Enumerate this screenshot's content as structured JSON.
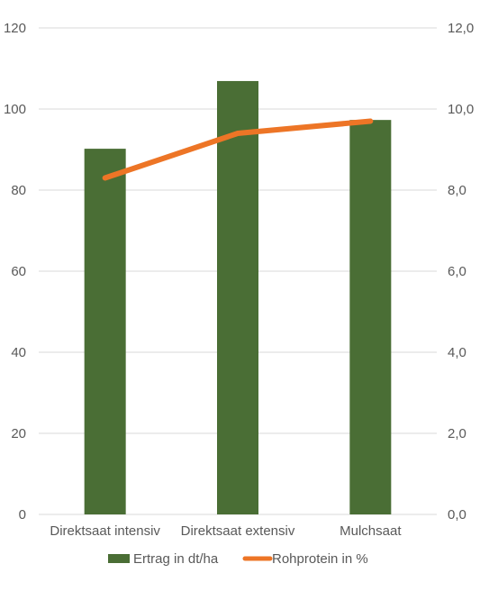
{
  "chart_data": {
    "type": "bar",
    "categories": [
      "Direktsaat intensiv",
      "Direktsaat extensiv",
      "Mulchsaat"
    ],
    "series": [
      {
        "name": "Ertrag in dt/ha",
        "type": "bar",
        "axis": "left",
        "color": "#4a6e35",
        "values": [
          90.2,
          106.9,
          97.3
        ]
      },
      {
        "name": "Rohprotein in %",
        "type": "line",
        "axis": "right",
        "color": "#ed7526",
        "values": [
          8.3,
          9.4,
          9.7
        ]
      }
    ],
    "y_left": {
      "min": 0,
      "max": 120,
      "ticks": [
        "0",
        "20",
        "40",
        "60",
        "80",
        "100",
        "120"
      ]
    },
    "y_right": {
      "min": 0,
      "max": 12,
      "ticks": [
        "0,0",
        "2,0",
        "4,0",
        "6,0",
        "8,0",
        "10,0",
        "12,0"
      ]
    },
    "grid": true,
    "legend_position": "bottom",
    "gridline_color": "#d9d9d9"
  }
}
